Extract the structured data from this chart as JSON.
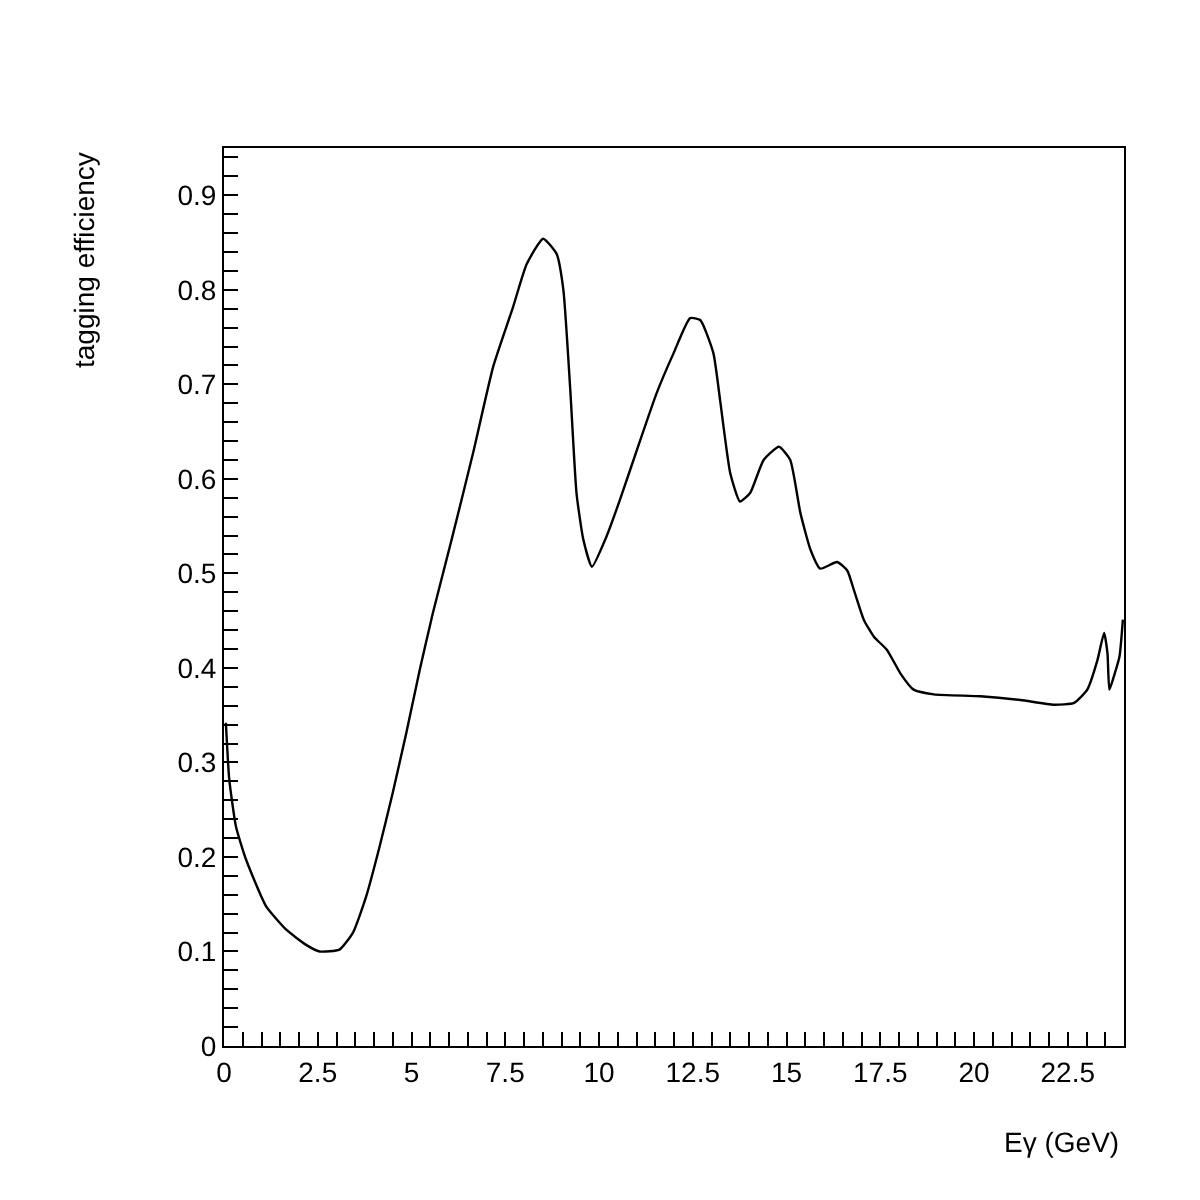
{
  "chart_data": {
    "type": "line",
    "xlabel": "Eγ (GeV)",
    "ylabel": "tagging efficiency",
    "x": [
      0.05,
      0.14,
      0.32,
      0.59,
      1.12,
      1.66,
      2.19,
      2.55,
      3.08,
      3.44,
      3.79,
      4.15,
      4.5,
      4.86,
      5.22,
      5.57,
      5.93,
      6.11,
      6.64,
      7.18,
      7.71,
      8.07,
      8.51,
      8.87,
      9.05,
      9.23,
      9.4,
      9.58,
      9.81,
      10.2,
      10.56,
      11.1,
      11.54,
      11.99,
      12.43,
      12.7,
      13.05,
      13.23,
      13.5,
      13.76,
      14.03,
      14.39,
      14.8,
      15.1,
      15.37,
      15.64,
      15.9,
      16.35,
      16.62,
      16.8,
      17.06,
      17.33,
      17.68,
      18.04,
      18.39,
      18.93,
      20.17,
      21.24,
      22.13,
      22.67,
      23.02,
      23.29,
      23.47,
      23.56,
      23.61,
      23.73,
      23.88,
      23.97
    ],
    "series": [
      {
        "color": "#000000",
        "values": [
          0.342,
          0.282,
          0.232,
          0.197,
          0.148,
          0.123,
          0.107,
          0.1,
          0.102,
          0.12,
          0.158,
          0.211,
          0.268,
          0.331,
          0.398,
          0.458,
          0.514,
          0.542,
          0.627,
          0.719,
          0.782,
          0.827,
          0.854,
          0.838,
          0.8,
          0.697,
          0.585,
          0.536,
          0.507,
          0.539,
          0.578,
          0.641,
          0.691,
          0.733,
          0.77,
          0.768,
          0.733,
          0.683,
          0.606,
          0.576,
          0.585,
          0.62,
          0.634,
          0.62,
          0.564,
          0.525,
          0.505,
          0.512,
          0.503,
          0.482,
          0.451,
          0.433,
          0.419,
          0.394,
          0.377,
          0.372,
          0.37,
          0.366,
          0.361,
          0.363,
          0.377,
          0.408,
          0.437,
          0.415,
          0.377,
          0.391,
          0.412,
          0.451
        ]
      }
    ],
    "xlim": [
      0,
      24
    ],
    "ylim": [
      0,
      0.95
    ],
    "xticks": [
      0,
      {
        "value": 0.5,
        "label": null
      },
      {
        "value": 1,
        "label": null
      },
      {
        "value": 1.5,
        "label": null
      },
      {
        "value": 2,
        "label": null
      },
      2.5,
      {
        "value": 3,
        "label": null
      },
      {
        "value": 3.5,
        "label": null
      },
      {
        "value": 4,
        "label": null
      },
      {
        "value": 4.5,
        "label": null
      },
      5,
      {
        "value": 5.5,
        "label": null
      },
      {
        "value": 6,
        "label": null
      },
      {
        "value": 6.5,
        "label": null
      },
      {
        "value": 7,
        "label": null
      },
      7.5,
      {
        "value": 8,
        "label": null
      },
      {
        "value": 8.5,
        "label": null
      },
      {
        "value": 9,
        "label": null
      },
      {
        "value": 9.5,
        "label": null
      },
      10,
      {
        "value": 10.5,
        "label": null
      },
      {
        "value": 11,
        "label": null
      },
      {
        "value": 11.5,
        "label": null
      },
      {
        "value": 12,
        "label": null
      },
      12.5,
      {
        "value": 13,
        "label": null
      },
      {
        "value": 13.5,
        "label": null
      },
      {
        "value": 14,
        "label": null
      },
      {
        "value": 14.5,
        "label": null
      },
      15,
      {
        "value": 15.5,
        "label": null
      },
      {
        "value": 16,
        "label": null
      },
      {
        "value": 16.5,
        "label": null
      },
      {
        "value": 17,
        "label": null
      },
      17.5,
      {
        "value": 18,
        "label": null
      },
      {
        "value": 18.5,
        "label": null
      },
      {
        "value": 19,
        "label": null
      },
      {
        "value": 19.5,
        "label": null
      },
      20,
      {
        "value": 20.5,
        "label": null
      },
      {
        "value": 21,
        "label": null
      },
      {
        "value": 21.5,
        "label": null
      },
      {
        "value": 22,
        "label": null
      },
      22.5,
      {
        "value": 23,
        "label": null
      },
      {
        "value": 23.5,
        "label": null
      }
    ],
    "yticks": [
      0,
      {
        "value": 0.02,
        "label": null
      },
      {
        "value": 0.04,
        "label": null
      },
      {
        "value": 0.06,
        "label": null
      },
      {
        "value": 0.08,
        "label": null
      },
      0.1,
      {
        "value": 0.12,
        "label": null
      },
      {
        "value": 0.14,
        "label": null
      },
      {
        "value": 0.16,
        "label": null
      },
      {
        "value": 0.18,
        "label": null
      },
      0.2,
      {
        "value": 0.22,
        "label": null
      },
      {
        "value": 0.24,
        "label": null
      },
      {
        "value": 0.26,
        "label": null
      },
      {
        "value": 0.28,
        "label": null
      },
      0.3,
      {
        "value": 0.32,
        "label": null
      },
      {
        "value": 0.34,
        "label": null
      },
      {
        "value": 0.36,
        "label": null
      },
      {
        "value": 0.38,
        "label": null
      },
      0.4,
      {
        "value": 0.42,
        "label": null
      },
      {
        "value": 0.44,
        "label": null
      },
      {
        "value": 0.46,
        "label": null
      },
      {
        "value": 0.48,
        "label": null
      },
      0.5,
      {
        "value": 0.52,
        "label": null
      },
      {
        "value": 0.54,
        "label": null
      },
      {
        "value": 0.56,
        "label": null
      },
      {
        "value": 0.58,
        "label": null
      },
      0.6,
      {
        "value": 0.62,
        "label": null
      },
      {
        "value": 0.64,
        "label": null
      },
      {
        "value": 0.66,
        "label": null
      },
      {
        "value": 0.68,
        "label": null
      },
      0.7,
      {
        "value": 0.72,
        "label": null
      },
      {
        "value": 0.74,
        "label": null
      },
      {
        "value": 0.76,
        "label": null
      },
      {
        "value": 0.78,
        "label": null
      },
      0.8,
      {
        "value": 0.82,
        "label": null
      },
      {
        "value": 0.84,
        "label": null
      },
      {
        "value": 0.86,
        "label": null
      },
      {
        "value": 0.88,
        "label": null
      },
      0.9,
      {
        "value": 0.92,
        "label": null
      },
      {
        "value": 0.94,
        "label": null
      }
    ],
    "marker": "none",
    "line_style": "solid"
  }
}
